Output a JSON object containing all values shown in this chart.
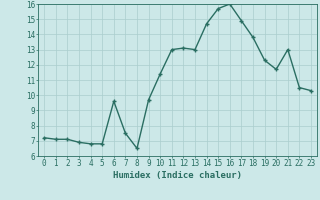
{
  "x": [
    0,
    1,
    2,
    3,
    4,
    5,
    6,
    7,
    8,
    9,
    10,
    11,
    12,
    13,
    14,
    15,
    16,
    17,
    18,
    19,
    20,
    21,
    22,
    23
  ],
  "y": [
    7.2,
    7.1,
    7.1,
    6.9,
    6.8,
    6.8,
    9.6,
    7.5,
    6.5,
    9.7,
    11.4,
    13.0,
    13.1,
    13.0,
    14.7,
    15.7,
    16.0,
    14.9,
    13.8,
    12.3,
    11.7,
    13.0,
    10.5,
    10.3
  ],
  "xlabel": "Humidex (Indice chaleur)",
  "ylim": [
    6,
    16
  ],
  "xlim_min": -0.5,
  "xlim_max": 23.5,
  "yticks": [
    6,
    7,
    8,
    9,
    10,
    11,
    12,
    13,
    14,
    15,
    16
  ],
  "xtick_labels": [
    "0",
    "1",
    "2",
    "3",
    "4",
    "5",
    "6",
    "7",
    "8",
    "9",
    "10",
    "11",
    "12",
    "13",
    "14",
    "15",
    "16",
    "17",
    "18",
    "19",
    "20",
    "21",
    "22",
    "23"
  ],
  "line_color": "#2a6e62",
  "marker": "+",
  "marker_size": 3.5,
  "bg_color": "#cce8e8",
  "grid_color": "#aacece",
  "xlabel_fontsize": 6.5,
  "tick_fontsize": 5.5,
  "line_width": 1.0,
  "marker_linewidth": 1.0
}
